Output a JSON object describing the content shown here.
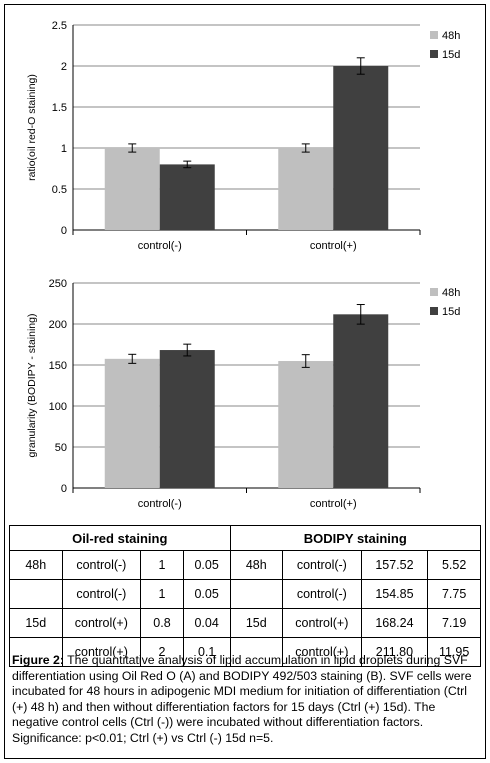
{
  "chart_data": [
    {
      "type": "bar",
      "ylabel": "ratio(oil red-O staining)",
      "ylim": [
        0,
        2.5
      ],
      "yticks": [
        "0",
        "0.5",
        "1",
        "1.5",
        "2",
        "2.5"
      ],
      "categories": [
        "control(-)",
        "control(+)"
      ],
      "series": [
        {
          "name": "48h",
          "values": [
            1.0,
            1.0
          ],
          "errors": [
            0.05,
            0.05
          ],
          "color": "#bfbfbf"
        },
        {
          "name": "15d",
          "values": [
            0.8,
            2.0
          ],
          "errors": [
            0.04,
            0.1
          ],
          "color": "#404040"
        }
      ],
      "legend": "top-right",
      "grid": true
    },
    {
      "type": "bar",
      "ylabel": "granularity (BODIPY - staining)",
      "ylim": [
        0,
        250
      ],
      "yticks": [
        "0",
        "50",
        "100",
        "150",
        "200",
        "250"
      ],
      "categories": [
        "control(-)",
        "control(+)"
      ],
      "series": [
        {
          "name": "48h",
          "values": [
            157.52,
            154.85
          ],
          "errors": [
            5.52,
            7.75
          ],
          "color": "#bfbfbf"
        },
        {
          "name": "15d",
          "values": [
            168.24,
            211.8
          ],
          "errors": [
            7.19,
            11.95
          ],
          "color": "#404040"
        }
      ],
      "legend": "top-right",
      "grid": true
    }
  ],
  "table": {
    "header_left": "Oil-red staining",
    "header_right": "BODIPY staining",
    "rows": [
      {
        "g1": "48h",
        "c1": "control(-)",
        "v1": "1",
        "e1": "0.05",
        "g2": "48h",
        "c2": "control(-)",
        "v2": "157.52",
        "e2": "5.52"
      },
      {
        "g1": "",
        "c1": "control(-)",
        "v1": "1",
        "e1": "0.05",
        "g2": "",
        "c2": "control(-)",
        "v2": "154.85",
        "e2": "7.75"
      },
      {
        "g1": "15d",
        "c1": "control(+)",
        "v1": "0.8",
        "e1": "0.04",
        "g2": "15d",
        "c2": "control(+)",
        "v2": "168.24",
        "e2": "7.19"
      },
      {
        "g1": "",
        "c1": "control(+)",
        "v1": "2",
        "e1": "0.1",
        "g2": "",
        "c2": "control(+)",
        "v2": "211.80",
        "e2": "11.95"
      }
    ]
  },
  "caption": {
    "label": "Figure 2:",
    "text": " The quantitative analysis of lipid accumulation in lipid droplets during SVF differentiation using Oil Red O (A) and BODIPY 492/503 staining (B). SVF cells were incubated for 48 hours in adipogenic MDI medium for initiation of differentiation (Ctrl (+) 48 h) and then without differentiation factors for 15 days (Ctrl (+) 15d). The negative control cells (Ctrl (-)) were incubated without differentiation factors. Significance: p<0.01; Ctrl (+) vs Ctrl (-) 15d n=5."
  }
}
